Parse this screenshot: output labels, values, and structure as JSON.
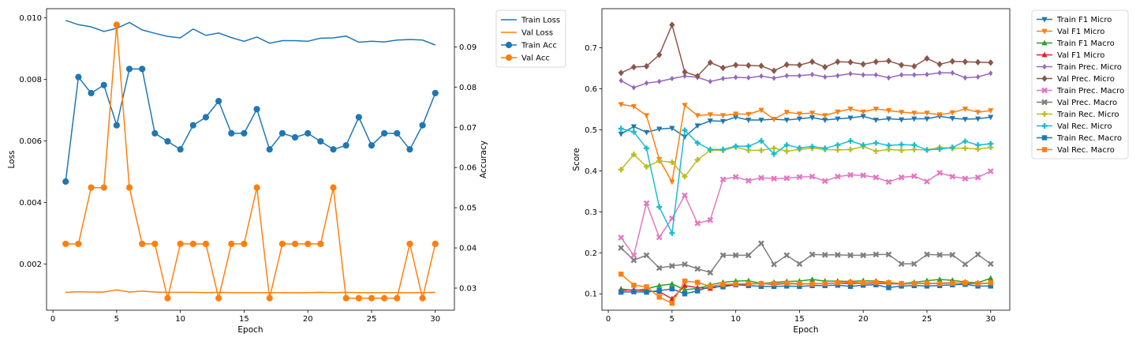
{
  "colors": {
    "blue": "#1f77b4",
    "orange": "#ff7f0e",
    "green": "#2ca02c",
    "red": "#d62728",
    "purple": "#9467bd",
    "brown": "#8c564b",
    "pink": "#e377c2",
    "gray": "#7f7f7f",
    "olive": "#bcbd22",
    "cyan": "#17becf"
  },
  "chart_data": [
    {
      "type": "line",
      "xlabel": "Epoch",
      "ylabel": "Loss",
      "y2label": "Accuracy",
      "xlim": [
        -0.5,
        31.5
      ],
      "ylim": [
        0.0005,
        0.0103
      ],
      "y2lim": [
        0.0245,
        0.0995
      ],
      "xticks": [
        0,
        5,
        10,
        15,
        20,
        25,
        30
      ],
      "yticks": [
        0.002,
        0.004,
        0.006,
        0.008,
        0.01
      ],
      "y2ticks": [
        0.03,
        0.04,
        0.05,
        0.06,
        0.07,
        0.08,
        0.09
      ],
      "legend_position": "outside-right",
      "x": [
        1,
        2,
        3,
        4,
        5,
        6,
        7,
        8,
        9,
        10,
        11,
        12,
        13,
        14,
        15,
        16,
        17,
        18,
        19,
        20,
        21,
        22,
        23,
        24,
        25,
        26,
        27,
        28,
        29,
        30
      ],
      "series": [
        {
          "name": "Train Loss",
          "axis": "left",
          "color": "blue",
          "marker": "none",
          "values": [
            0.00992,
            0.00978,
            0.00971,
            0.00956,
            0.00966,
            0.00985,
            0.00961,
            0.0095,
            0.0094,
            0.00935,
            0.00964,
            0.00943,
            0.00951,
            0.00936,
            0.00924,
            0.00938,
            0.00918,
            0.00926,
            0.00926,
            0.00924,
            0.00934,
            0.00935,
            0.00941,
            0.00921,
            0.00924,
            0.00922,
            0.00928,
            0.0093,
            0.00928,
            0.00912
          ]
        },
        {
          "name": "Val Loss",
          "axis": "left",
          "color": "orange",
          "marker": "none",
          "values": [
            0.00108,
            0.0011,
            0.00109,
            0.00109,
            0.00116,
            0.00109,
            0.00112,
            0.00109,
            0.00108,
            0.00108,
            0.00108,
            0.00107,
            0.00108,
            0.00107,
            0.00107,
            0.00107,
            0.00107,
            0.00107,
            0.00107,
            0.00107,
            0.00108,
            0.00107,
            0.00108,
            0.00107,
            0.00107,
            0.00107,
            0.00107,
            0.00107,
            0.00107,
            0.00108
          ]
        },
        {
          "name": "Train Acc",
          "axis": "right",
          "color": "blue",
          "marker": "circle",
          "values": [
            0.0565,
            0.0825,
            0.0785,
            0.0805,
            0.0705,
            0.0845,
            0.0845,
            0.0685,
            0.0665,
            0.0645,
            0.0705,
            0.0725,
            0.0765,
            0.0685,
            0.0685,
            0.0745,
            0.0645,
            0.0685,
            0.0675,
            0.0685,
            0.0665,
            0.0645,
            0.0655,
            0.0725,
            0.0655,
            0.0685,
            0.0685,
            0.0645,
            0.0705,
            0.0785
          ]
        },
        {
          "name": "Val Acc",
          "axis": "right",
          "color": "orange",
          "marker": "circle",
          "values": [
            0.041,
            0.041,
            0.055,
            0.055,
            0.0955,
            0.055,
            0.041,
            0.041,
            0.0275,
            0.041,
            0.041,
            0.041,
            0.0275,
            0.041,
            0.041,
            0.055,
            0.0275,
            0.041,
            0.041,
            0.041,
            0.041,
            0.055,
            0.0275,
            0.0275,
            0.0275,
            0.0275,
            0.0275,
            0.041,
            0.0275,
            0.041
          ]
        }
      ]
    },
    {
      "type": "line",
      "xlabel": "Epoch",
      "ylabel": "Score",
      "xlim": [
        -0.5,
        31.5
      ],
      "ylim": [
        0.06,
        0.7955
      ],
      "xticks": [
        0,
        5,
        10,
        15,
        20,
        25,
        30
      ],
      "yticks": [
        0.1,
        0.2,
        0.3,
        0.4,
        0.5,
        0.6,
        0.7
      ],
      "legend_position": "outside-right",
      "x": [
        1,
        2,
        3,
        4,
        5,
        6,
        7,
        8,
        9,
        10,
        11,
        12,
        13,
        14,
        15,
        16,
        17,
        18,
        19,
        20,
        21,
        22,
        23,
        24,
        25,
        26,
        27,
        28,
        29,
        30
      ],
      "series": [
        {
          "name": "Train F1 Micro",
          "color": "blue",
          "marker": "tri_down",
          "values": [
            0.49,
            0.508,
            0.494,
            0.502,
            0.504,
            0.483,
            0.51,
            0.522,
            0.521,
            0.531,
            0.524,
            0.524,
            0.526,
            0.524,
            0.527,
            0.53,
            0.524,
            0.527,
            0.529,
            0.533,
            0.524,
            0.527,
            0.525,
            0.527,
            0.527,
            0.533,
            0.528,
            0.526,
            0.527,
            0.531
          ]
        },
        {
          "name": "Val F1 Micro",
          "color": "orange",
          "marker": "tri_down",
          "values": [
            0.562,
            0.557,
            0.535,
            0.428,
            0.373,
            0.56,
            0.535,
            0.537,
            0.535,
            0.539,
            0.538,
            0.548,
            0.526,
            0.543,
            0.539,
            0.541,
            0.535,
            0.544,
            0.551,
            0.544,
            0.551,
            0.547,
            0.543,
            0.541,
            0.541,
            0.537,
            0.542,
            0.551,
            0.543,
            0.547
          ]
        },
        {
          "name": "Train F1 Macro",
          "color": "green",
          "marker": "tri_up",
          "values": [
            0.112,
            0.108,
            0.112,
            0.12,
            0.124,
            0.11,
            0.113,
            0.122,
            0.128,
            0.131,
            0.132,
            0.125,
            0.128,
            0.13,
            0.131,
            0.135,
            0.131,
            0.131,
            0.13,
            0.132,
            0.131,
            0.128,
            0.125,
            0.128,
            0.132,
            0.135,
            0.133,
            0.129,
            0.127,
            0.138
          ]
        },
        {
          "name": "Val F1 Micro",
          "color": "red",
          "marker": "tri_up",
          "values": [
            0.108,
            0.11,
            0.107,
            0.105,
            0.088,
            0.12,
            0.115,
            0.113,
            0.12,
            0.122,
            0.124,
            0.125,
            0.123,
            0.125,
            0.124,
            0.125,
            0.125,
            0.126,
            0.125,
            0.126,
            0.126,
            0.125,
            0.124,
            0.125,
            0.125,
            0.126,
            0.127,
            0.125,
            0.125,
            0.126
          ]
        },
        {
          "name": "Train Prec. Micro",
          "color": "purple",
          "marker": "diamond_thin",
          "values": [
            0.62,
            0.603,
            0.614,
            0.618,
            0.625,
            0.631,
            0.628,
            0.618,
            0.625,
            0.628,
            0.627,
            0.631,
            0.626,
            0.632,
            0.632,
            0.635,
            0.629,
            0.632,
            0.637,
            0.634,
            0.634,
            0.627,
            0.634,
            0.634,
            0.635,
            0.639,
            0.639,
            0.627,
            0.629,
            0.638
          ]
        },
        {
          "name": "Val Prec. Micro",
          "color": "brown",
          "marker": "diamond",
          "values": [
            0.639,
            0.653,
            0.655,
            0.683,
            0.756,
            0.641,
            0.631,
            0.664,
            0.651,
            0.658,
            0.657,
            0.656,
            0.644,
            0.659,
            0.658,
            0.666,
            0.653,
            0.666,
            0.665,
            0.66,
            0.666,
            0.668,
            0.658,
            0.655,
            0.674,
            0.66,
            0.667,
            0.666,
            0.665,
            0.664
          ]
        },
        {
          "name": "Train Prec. Macro",
          "color": "pink",
          "marker": "x",
          "values": [
            0.237,
            0.194,
            0.321,
            0.238,
            0.284,
            0.34,
            0.272,
            0.28,
            0.379,
            0.385,
            0.376,
            0.383,
            0.381,
            0.382,
            0.385,
            0.386,
            0.375,
            0.386,
            0.39,
            0.389,
            0.384,
            0.373,
            0.384,
            0.387,
            0.374,
            0.395,
            0.386,
            0.381,
            0.384,
            0.399
          ]
        },
        {
          "name": "Val Prec. Macro",
          "color": "gray",
          "marker": "x",
          "values": [
            0.212,
            0.182,
            0.194,
            0.163,
            0.168,
            0.172,
            0.161,
            0.152,
            0.194,
            0.194,
            0.194,
            0.223,
            0.172,
            0.194,
            0.173,
            0.196,
            0.195,
            0.195,
            0.194,
            0.194,
            0.196,
            0.196,
            0.173,
            0.173,
            0.196,
            0.195,
            0.195,
            0.172,
            0.196,
            0.173
          ]
        },
        {
          "name": "Train Rec. Micro",
          "color": "olive",
          "marker": "plus",
          "values": [
            0.403,
            0.44,
            0.41,
            0.424,
            0.421,
            0.386,
            0.427,
            0.45,
            0.45,
            0.458,
            0.45,
            0.45,
            0.455,
            0.448,
            0.452,
            0.455,
            0.452,
            0.451,
            0.452,
            0.459,
            0.448,
            0.452,
            0.45,
            0.452,
            0.451,
            0.457,
            0.455,
            0.455,
            0.453,
            0.457
          ]
        },
        {
          "name": "Val Rec. Micro",
          "color": "cyan",
          "marker": "plus",
          "values": [
            0.503,
            0.495,
            0.455,
            0.312,
            0.248,
            0.499,
            0.468,
            0.452,
            0.452,
            0.46,
            0.46,
            0.473,
            0.441,
            0.463,
            0.456,
            0.459,
            0.455,
            0.463,
            0.473,
            0.463,
            0.468,
            0.462,
            0.464,
            0.463,
            0.451,
            0.453,
            0.457,
            0.472,
            0.463,
            0.466
          ]
        },
        {
          "name": "Train Rec. Macro",
          "color": "blue",
          "marker": "square",
          "values": [
            0.104,
            0.105,
            0.104,
            0.108,
            0.112,
            0.1,
            0.107,
            0.118,
            0.117,
            0.122,
            0.12,
            0.118,
            0.118,
            0.119,
            0.118,
            0.12,
            0.12,
            0.121,
            0.118,
            0.121,
            0.122,
            0.115,
            0.119,
            0.12,
            0.119,
            0.12,
            0.122,
            0.123,
            0.119,
            0.119
          ]
        },
        {
          "name": "Val Rec. Macro",
          "color": "orange",
          "marker": "square",
          "values": [
            0.148,
            0.121,
            0.117,
            0.092,
            0.077,
            0.131,
            0.128,
            0.118,
            0.123,
            0.124,
            0.125,
            0.125,
            0.125,
            0.126,
            0.125,
            0.124,
            0.125,
            0.127,
            0.128,
            0.127,
            0.128,
            0.127,
            0.125,
            0.125,
            0.126,
            0.125,
            0.126,
            0.127,
            0.125,
            0.127
          ]
        }
      ]
    }
  ]
}
